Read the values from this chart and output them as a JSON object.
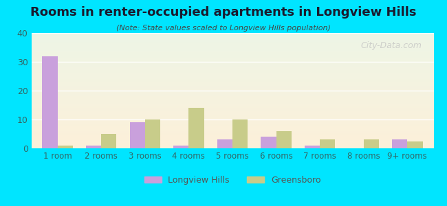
{
  "title": "Rooms in renter-occupied apartments in Longview Hills",
  "subtitle": "(Note: State values scaled to Longview Hills population)",
  "categories": [
    "1 room",
    "2 rooms",
    "3 rooms",
    "4 rooms",
    "5 rooms",
    "6 rooms",
    "7 rooms",
    "8 rooms",
    "9+ rooms"
  ],
  "longview_hills": [
    32,
    1,
    9,
    1,
    3,
    4,
    1,
    0,
    3
  ],
  "greensboro": [
    1,
    5,
    10,
    14,
    10,
    6,
    3,
    3,
    2.5
  ],
  "longview_color": "#c9a0dc",
  "greensboro_color": "#c8cc8a",
  "ylim": [
    0,
    40
  ],
  "yticks": [
    0,
    10,
    20,
    30,
    40
  ],
  "bg_outer": "#00e5ff",
  "watermark": "City-Data.com",
  "bar_width": 0.35
}
